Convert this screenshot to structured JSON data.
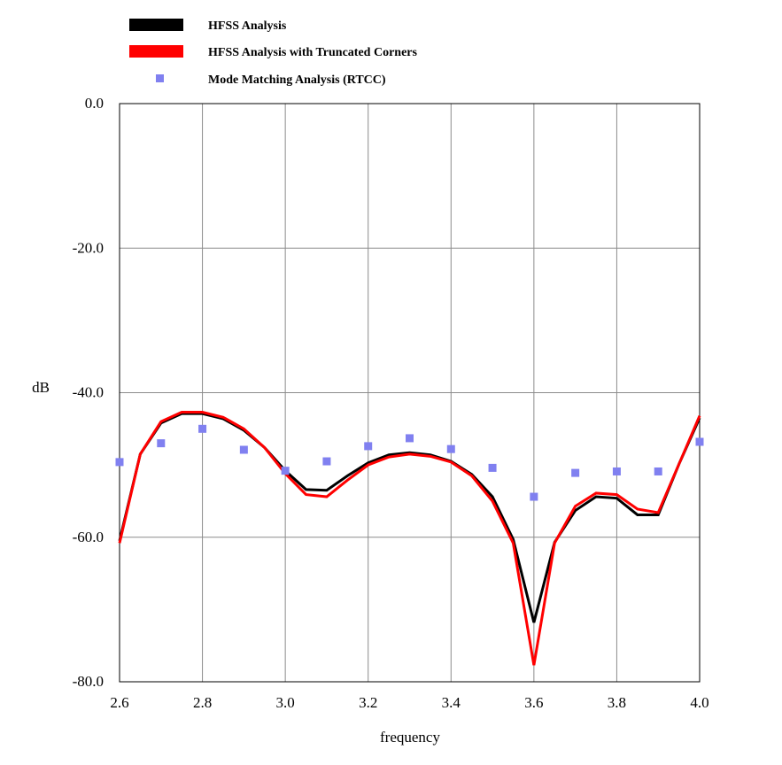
{
  "chart_data": {
    "type": "line",
    "xlabel": "frequency",
    "ylabel": "dB",
    "xlim": [
      2.6,
      4.0
    ],
    "ylim": [
      -80,
      0
    ],
    "x_ticks": [
      2.6,
      2.8,
      3.0,
      3.2,
      3.4,
      3.6,
      3.8,
      4.0
    ],
    "x_tick_labels": [
      "2.6",
      "2.8",
      "3.0",
      "3.2",
      "3.4",
      "3.6",
      "3.8",
      "4.0"
    ],
    "y_ticks": [
      0,
      -20,
      -40,
      -60,
      -80
    ],
    "y_tick_labels": [
      "0.0",
      "-20.0",
      "-40.0",
      "-60.0",
      "-80.0"
    ],
    "grid": true,
    "legend_position": "top-left, above plot",
    "series": [
      {
        "name": "HFSS Analysis",
        "style": "line",
        "color": "#000000",
        "x": [
          2.6,
          2.65,
          2.7,
          2.75,
          2.8,
          2.85,
          2.9,
          2.95,
          3.0,
          3.05,
          3.1,
          3.15,
          3.2,
          3.25,
          3.3,
          3.35,
          3.4,
          3.45,
          3.5,
          3.55,
          3.6,
          3.65,
          3.7,
          3.75,
          3.8,
          3.85,
          3.9,
          3.95,
          4.0
        ],
        "y": [
          -60.5,
          -48.5,
          -44.2,
          -42.9,
          -42.9,
          -43.6,
          -45.2,
          -47.6,
          -50.8,
          -53.4,
          -53.5,
          -51.5,
          -49.7,
          -48.6,
          -48.3,
          -48.6,
          -49.5,
          -51.3,
          -54.4,
          -60.3,
          -71.8,
          -60.7,
          -56.3,
          -54.4,
          -54.6,
          -56.9,
          -56.9,
          -49.9,
          -43.5
        ]
      },
      {
        "name": "HFSS Analysis with Truncated Corners",
        "style": "line",
        "color": "#ff0000",
        "x": [
          2.6,
          2.65,
          2.7,
          2.75,
          2.8,
          2.85,
          2.9,
          2.95,
          3.0,
          3.05,
          3.1,
          3.15,
          3.2,
          3.25,
          3.3,
          3.35,
          3.4,
          3.45,
          3.5,
          3.55,
          3.6,
          3.65,
          3.7,
          3.75,
          3.8,
          3.85,
          3.9,
          3.95,
          4.0
        ],
        "y": [
          -60.8,
          -48.5,
          -44.0,
          -42.7,
          -42.7,
          -43.4,
          -45.0,
          -47.6,
          -51.2,
          -54.1,
          -54.4,
          -52.1,
          -50.0,
          -48.9,
          -48.5,
          -48.8,
          -49.6,
          -51.5,
          -55.0,
          -60.8,
          -77.7,
          -60.8,
          -55.7,
          -53.9,
          -54.1,
          -56.1,
          -56.6,
          -49.9,
          -43.2
        ]
      },
      {
        "name": "Mode Matching Analysis (RTCC)",
        "style": "markers",
        "color": "#8080f0",
        "x": [
          2.6,
          2.7,
          2.8,
          2.9,
          3.0,
          3.1,
          3.2,
          3.3,
          3.4,
          3.5,
          3.6,
          3.7,
          3.8,
          3.9,
          4.0
        ],
        "y": [
          -49.6,
          -47.0,
          -45.0,
          -47.9,
          -50.8,
          -49.5,
          -47.4,
          -46.3,
          -47.8,
          -50.4,
          -54.4,
          -51.1,
          -50.9,
          -50.9,
          -46.8
        ]
      }
    ]
  }
}
